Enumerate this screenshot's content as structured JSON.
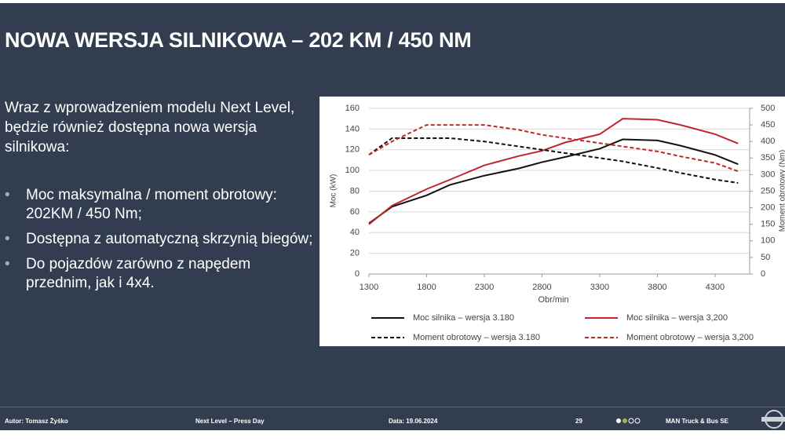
{
  "slide": {
    "title": "NOWA WERSJA SILNIKOWA – 202 KM / 450 NM",
    "intro": "Wraz z wprowadzeniem modelu Next Level, będzie również dostępna nowa wersja silnikowa:",
    "bullets": [
      "Moc maksymalna / moment obrotowy: 202KM / 450 Nm;",
      "Dostępna z automatyczną skrzynią biegów;",
      "Do pojazdów zarówno z napędem przednim, jak i 4x4."
    ],
    "footer": {
      "author": "Autor: Tomasz Żyśko",
      "event": "Next Level – Press Day",
      "date": "Data: 19.06.2024",
      "page": "29",
      "company": "MAN Truck & Bus SE"
    }
  },
  "chart_data": {
    "type": "line",
    "x_label": "Obr/min",
    "y_label": "Moc (kW)",
    "y2_label": "Moment obrotowy (Nm)",
    "x": [
      1300,
      1500,
      1800,
      2000,
      2300,
      2600,
      2800,
      3000,
      3300,
      3500,
      3800,
      4000,
      4300,
      4500
    ],
    "xlim": [
      1300,
      4600
    ],
    "xticks": [
      1300,
      1800,
      2300,
      2800,
      3300,
      3800,
      4300
    ],
    "ylim": [
      0,
      160
    ],
    "yticks": [
      0,
      20,
      40,
      60,
      80,
      100,
      120,
      140,
      160
    ],
    "y2lim": [
      0,
      500
    ],
    "y2ticks": [
      0,
      50,
      100,
      150,
      200,
      250,
      300,
      350,
      400,
      450,
      500
    ],
    "grid": true,
    "series": [
      {
        "name": "Moc silnika – wersja 3.180",
        "color": "#111111",
        "dash": false,
        "values": [
          49,
          65,
          76,
          86,
          95,
          102,
          108,
          113,
          121,
          130,
          129,
          124,
          115,
          106
        ]
      },
      {
        "name": "Moc silnika – wersja 3,200",
        "color": "#c0272d",
        "dash": false,
        "values": [
          48,
          66,
          82,
          91,
          105,
          114,
          119,
          127,
          135,
          150,
          149,
          144,
          135,
          126
        ]
      },
      {
        "name": "Moment obrotowy – wersja 3.180",
        "color": "#111111",
        "dash": true,
        "axis": "y2",
        "values": [
          360,
          410,
          410,
          410,
          400,
          385,
          375,
          365,
          350,
          340,
          320,
          305,
          285,
          275
        ]
      },
      {
        "name": "Moment obrotowy – wersja 3,200",
        "color": "#c0272d",
        "dash": true,
        "axis": "y2",
        "values": [
          360,
          400,
          450,
          450,
          450,
          435,
          420,
          410,
          395,
          385,
          370,
          355,
          335,
          310
        ]
      }
    ]
  }
}
